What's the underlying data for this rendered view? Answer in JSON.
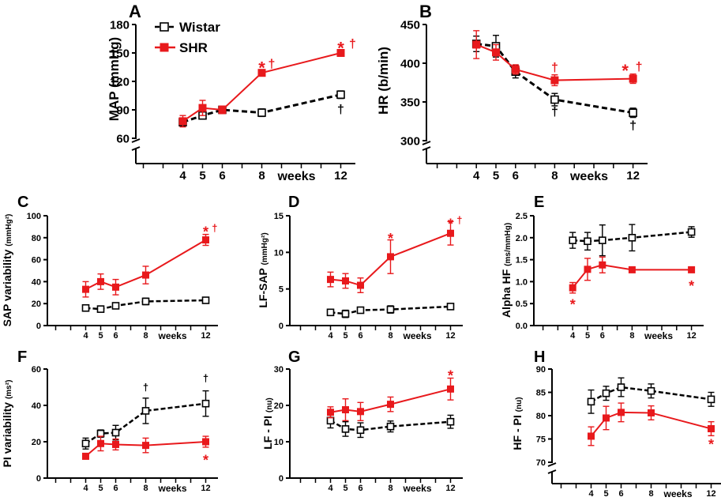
{
  "legend": {
    "wistar": "Wistar",
    "shr": "SHR"
  },
  "colors": {
    "wistar": "#000000",
    "shr": "#e8191c"
  },
  "chart_data": [
    {
      "id": "A",
      "letter": "A",
      "type": "line",
      "ylabel": "MAP (mmHg)",
      "xlabel": "weeks",
      "ylim": [
        60,
        180
      ],
      "yticks": [
        60,
        90,
        120,
        150,
        180
      ],
      "axis_break": true,
      "x": [
        4,
        5,
        6,
        8,
        12
      ],
      "series": [
        {
          "name": "Wistar",
          "values": [
            77,
            84,
            90,
            87,
            106
          ],
          "errors": [
            4,
            3,
            4,
            4,
            4
          ]
        },
        {
          "name": "SHR",
          "values": [
            78,
            92,
            90,
            129,
            150
          ],
          "errors": [
            6,
            8,
            4,
            2,
            3
          ]
        }
      ],
      "annotations": [
        {
          "text": "*",
          "x": 8,
          "y": 138,
          "color": "red"
        },
        {
          "text": "†",
          "x": 8.5,
          "y": 139,
          "color": "red"
        },
        {
          "text": "*",
          "x": 12,
          "y": 159,
          "color": "red"
        },
        {
          "text": "†",
          "x": 12.6,
          "y": 160,
          "color": "red"
        },
        {
          "text": "†",
          "x": 12,
          "y": 91,
          "color": "black"
        }
      ]
    },
    {
      "id": "B",
      "letter": "B",
      "type": "line",
      "ylabel": "HR (b/min)",
      "xlabel": "weeks",
      "ylim": [
        300,
        450
      ],
      "yticks": [
        300,
        350,
        400,
        450
      ],
      "axis_break": true,
      "x": [
        4,
        5,
        6,
        8,
        12
      ],
      "series": [
        {
          "name": "Wistar",
          "values": [
            425,
            422,
            389,
            353,
            336
          ],
          "errors": [
            10,
            14,
            8,
            8,
            6
          ]
        },
        {
          "name": "SHR",
          "values": [
            424,
            414,
            392,
            378,
            380
          ],
          "errors": [
            18,
            10,
            6,
            7,
            6
          ]
        }
      ],
      "annotations": [
        {
          "text": "†",
          "x": 8,
          "y": 395,
          "color": "red"
        },
        {
          "text": "*",
          "x": 11.6,
          "y": 395,
          "color": "red"
        },
        {
          "text": "†",
          "x": 12.3,
          "y": 396,
          "color": "red"
        },
        {
          "text": "†",
          "x": 8,
          "y": 338,
          "color": "black"
        },
        {
          "text": "†",
          "x": 12,
          "y": 320,
          "color": "black"
        }
      ]
    },
    {
      "id": "C",
      "letter": "C",
      "type": "line",
      "ylabel": "SAP variability",
      "ylabel_unit": "(mmHg²)",
      "xlabel": "weeks",
      "ylim": [
        0,
        100
      ],
      "yticks": [
        0,
        20,
        40,
        60,
        80,
        100
      ],
      "axis_break": false,
      "x": [
        4,
        5,
        6,
        8,
        12
      ],
      "series": [
        {
          "name": "Wistar",
          "values": [
            16,
            15,
            18,
            22,
            23
          ],
          "errors": [
            2,
            2,
            2,
            3,
            2
          ]
        },
        {
          "name": "SHR",
          "values": [
            33,
            40,
            35,
            46,
            78
          ],
          "errors": [
            7,
            7,
            7,
            8,
            5
          ]
        }
      ],
      "annotations": [
        {
          "text": "*",
          "x": 12,
          "y": 88,
          "color": "red"
        },
        {
          "text": "†",
          "x": 12.6,
          "y": 89,
          "color": "red"
        }
      ]
    },
    {
      "id": "D",
      "letter": "D",
      "type": "line",
      "ylabel": "LF-SAP",
      "ylabel_unit": "(mmHg²)",
      "xlabel": "weeks",
      "ylim": [
        0,
        15
      ],
      "yticks": [
        0,
        5,
        10,
        15
      ],
      "axis_break": false,
      "x": [
        4,
        5,
        6,
        8,
        12
      ],
      "series": [
        {
          "name": "Wistar",
          "values": [
            1.8,
            1.6,
            2.1,
            2.2,
            2.6
          ],
          "errors": [
            0.3,
            0.5,
            0.4,
            0.5,
            0.3
          ]
        },
        {
          "name": "SHR",
          "values": [
            6.3,
            6.1,
            5.5,
            9.4,
            12.6
          ],
          "errors": [
            1.0,
            1.0,
            1.0,
            2.3,
            1.6
          ]
        }
      ],
      "annotations": [
        {
          "text": "*",
          "x": 8,
          "y": 12.3,
          "color": "red"
        },
        {
          "text": "*",
          "x": 12,
          "y": 14.3,
          "color": "red"
        },
        {
          "text": "†",
          "x": 12.6,
          "y": 14.4,
          "color": "red"
        }
      ]
    },
    {
      "id": "E",
      "letter": "E",
      "type": "line",
      "ylabel": "Alpha HF",
      "ylabel_unit": "(ms/mmHg)",
      "xlabel": "weeks",
      "ylim": [
        0,
        2.5
      ],
      "yticks": [
        0,
        0.5,
        1.0,
        1.5,
        2.0,
        2.5
      ],
      "axis_break": false,
      "x": [
        4,
        5,
        6,
        8,
        12
      ],
      "series": [
        {
          "name": "Wistar",
          "values": [
            1.94,
            1.92,
            1.94,
            2.0,
            2.13
          ],
          "errors": [
            0.18,
            0.2,
            0.35,
            0.3,
            0.12
          ]
        },
        {
          "name": "SHR",
          "values": [
            0.86,
            1.28,
            1.38,
            1.27,
            1.27
          ],
          "errors": [
            0.12,
            0.25,
            0.18,
            0.06,
            0.06
          ]
        }
      ],
      "annotations": [
        {
          "text": "*",
          "x": 4,
          "y": 0.55,
          "color": "red"
        },
        {
          "text": "*",
          "x": 12,
          "y": 0.97,
          "color": "red"
        }
      ]
    },
    {
      "id": "F",
      "letter": "F",
      "type": "line",
      "ylabel": "PI variability",
      "ylabel_unit": "(ms²)",
      "xlabel": "weeks",
      "ylim": [
        0,
        60
      ],
      "yticks": [
        0,
        20,
        40,
        60
      ],
      "axis_break": false,
      "x": [
        4,
        5,
        6,
        8,
        12
      ],
      "series": [
        {
          "name": "Wistar",
          "values": [
            19,
            24.5,
            25,
            37,
            41
          ],
          "errors": [
            3,
            2,
            4,
            7,
            7
          ]
        },
        {
          "name": "SHR",
          "values": [
            12,
            19,
            18.5,
            18,
            20
          ],
          "errors": [
            1.5,
            4,
            3,
            4,
            3
          ]
        }
      ],
      "annotations": [
        {
          "text": "†",
          "x": 8,
          "y": 50,
          "color": "black"
        },
        {
          "text": "†",
          "x": 12,
          "y": 55,
          "color": "black"
        },
        {
          "text": "*",
          "x": 12,
          "y": 11.5,
          "color": "red"
        }
      ]
    },
    {
      "id": "G",
      "letter": "G",
      "type": "line",
      "ylabel": "LF - PI",
      "ylabel_unit": "(nu)",
      "xlabel": "weeks",
      "ylim": [
        0,
        30
      ],
      "yticks": [
        0,
        10,
        20,
        30
      ],
      "axis_break": false,
      "x": [
        4,
        5,
        6,
        8,
        12
      ],
      "series": [
        {
          "name": "Wistar",
          "values": [
            15.8,
            13.5,
            13.2,
            14.2,
            15.5
          ],
          "errors": [
            2,
            2,
            2,
            1.5,
            1.8
          ]
        },
        {
          "name": "SHR",
          "values": [
            18.1,
            18.8,
            18.3,
            20.3,
            24.5
          ],
          "errors": [
            1.5,
            3,
            2.5,
            2,
            3
          ]
        }
      ],
      "annotations": [
        {
          "text": "*",
          "x": 12,
          "y": 29,
          "color": "red"
        }
      ]
    },
    {
      "id": "H",
      "letter": "H",
      "type": "line",
      "ylabel": "HF - PI",
      "ylabel_unit": "(nu)",
      "xlabel": "weeks",
      "ylim": [
        70,
        90
      ],
      "yticks": [
        70,
        75,
        80,
        85,
        90
      ],
      "axis_break": true,
      "x": [
        4,
        5,
        6,
        8,
        12
      ],
      "series": [
        {
          "name": "Wistar",
          "values": [
            83,
            84.8,
            86.1,
            85.3,
            83.5
          ],
          "errors": [
            2.5,
            1.5,
            2,
            1.5,
            1.5
          ]
        },
        {
          "name": "SHR",
          "values": [
            75.6,
            79.5,
            80.7,
            80.6,
            77.2
          ],
          "errors": [
            2,
            2.5,
            2,
            1.5,
            1.5
          ]
        }
      ],
      "annotations": [
        {
          "text": "*",
          "x": 12,
          "y": 74.5,
          "color": "red"
        }
      ]
    }
  ]
}
